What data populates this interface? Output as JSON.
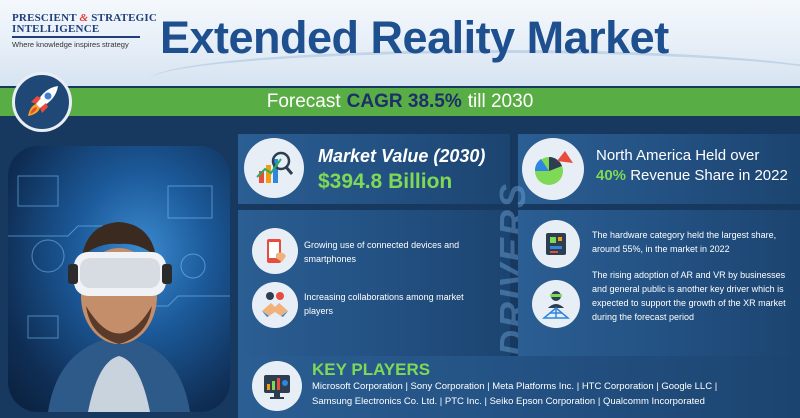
{
  "logo": {
    "line1_a": "PRESCIENT",
    "line1_amp": "&",
    "line1_b": "STRATEGIC",
    "line2": "INTELLIGENCE",
    "tagline": "Where knowledge inspires strategy"
  },
  "title": "Extended Reality Market",
  "forecast": {
    "prefix": "Forecast",
    "highlight": "CAGR 38.5%",
    "suffix": "till 2030"
  },
  "market_value": {
    "label": "Market Value (2030)",
    "value": "$394.8 Billion"
  },
  "regional": {
    "line1": "North America Held over",
    "percent": "40%",
    "line2_rest": "Revenue Share in 2022"
  },
  "drivers": {
    "heading": "DRIVERS",
    "items": [
      "Growing use of connected devices and smartphones",
      "Increasing collaborations among market players"
    ]
  },
  "insights": [
    "The hardware category held the largest share, around 55%, in the market in 2022",
    "The rising adoption of AR and VR by businesses and general public is another key driver which is expected to support the growth of the XR market during the forecast period"
  ],
  "key_players": {
    "title": "KEY PLAYERS",
    "line1": "Microsoft Corporation | Sony Corporation | Meta Platforms Inc. | HTC Corporation | Google LLC |",
    "line2": "Samsung Electronics Co. Ltd. | PTC Inc. | Seiko Epson Corporation | Qualcomm Incorporated"
  },
  "colors": {
    "background": "#17385f",
    "accent_green": "#7ed957",
    "band_green": "#59ad45",
    "title_blue": "#1e4f8f"
  },
  "icons": [
    "rocket-icon",
    "market-chart-icon",
    "pie-chart-icon",
    "smartphone-icon",
    "handshake-icon",
    "circuit-board-icon",
    "network-person-icon",
    "key-players-dashboard-icon"
  ]
}
